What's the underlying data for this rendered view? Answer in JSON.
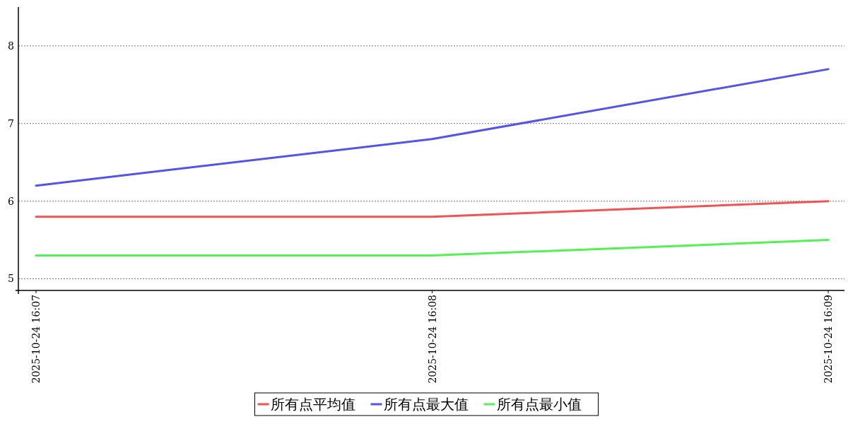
{
  "chart_data": {
    "type": "line",
    "categories": [
      "2025-10-24 16:07",
      "2025-10-24 16:08",
      "2025-10-24 16:09"
    ],
    "series": [
      {
        "name": "所有点平均值",
        "color": "#f05454",
        "values": [
          5.8,
          5.8,
          6.0
        ]
      },
      {
        "name": "所有点最大值",
        "color": "#5454e8",
        "values": [
          6.2,
          6.8,
          7.7
        ]
      },
      {
        "name": "所有点最小值",
        "color": "#54f054",
        "values": [
          5.3,
          5.3,
          5.5
        ]
      }
    ],
    "ylim": [
      4.85,
      8.5
    ],
    "yticks": [
      5,
      6,
      7,
      8
    ],
    "grid": "y",
    "legend": "bottom",
    "line_style": "solid",
    "marker": "none"
  }
}
